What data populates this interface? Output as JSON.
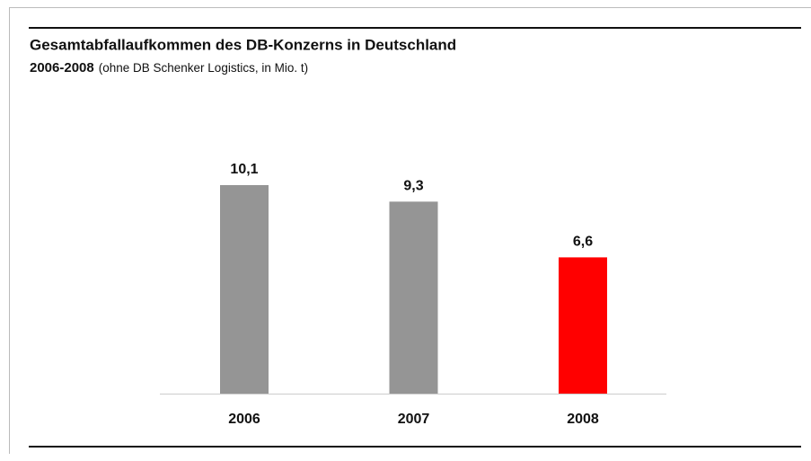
{
  "chart_data": {
    "type": "bar",
    "title": "Gesamtabfallaufkommen des DB-Konzerns in Deutschland",
    "subtitle": "2006-2008",
    "subtitle_note": "(ohne DB Schenker Logistics, in Mio. t)",
    "categories": [
      "2006",
      "2007",
      "2008"
    ],
    "values": [
      10.1,
      9.3,
      6.6
    ],
    "value_labels": [
      "10,1",
      "9,3",
      "6,6"
    ],
    "colors": [
      "#959595",
      "#959595",
      "#ff0000"
    ]
  }
}
